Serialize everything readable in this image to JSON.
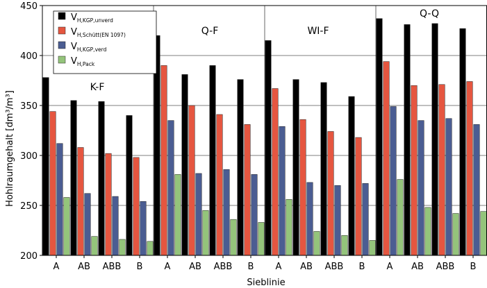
{
  "chart_data": {
    "type": "bar",
    "ylabel": "Hohlraumgehalt [dm³/m³]",
    "xlabel": "Sieblinie",
    "ylim": [
      200,
      450
    ],
    "yticks": [
      200,
      250,
      300,
      350,
      400,
      450
    ],
    "grid": true,
    "legend_position": "top-left",
    "groups": [
      "K-F",
      "Q-F",
      "WI-F",
      "Q-Q"
    ],
    "categories": [
      "A",
      "AB",
      "ABB",
      "B"
    ],
    "series": [
      {
        "name": "V_H,KGP,unverd",
        "label_main": "V",
        "label_sub": "H,KGP,unverd",
        "color": "#000000",
        "values": [
          [
            378,
            355,
            354,
            340
          ],
          [
            420,
            381,
            390,
            376
          ],
          [
            415,
            376,
            373,
            359
          ],
          [
            437,
            431,
            432,
            427
          ]
        ]
      },
      {
        "name": "V_H,Schütt(EN 1097)",
        "label_main": "V",
        "label_sub": "H,Schütt(EN 1097)",
        "color": "#e55640",
        "values": [
          [
            344,
            308,
            302,
            298
          ],
          [
            390,
            350,
            341,
            331
          ],
          [
            367,
            336,
            324,
            318
          ],
          [
            394,
            370,
            371,
            374
          ]
        ]
      },
      {
        "name": "V_H,KGP,verd",
        "label_main": "V",
        "label_sub": "H,KGP,verd",
        "color": "#4b5d92",
        "values": [
          [
            312,
            262,
            259,
            254
          ],
          [
            335,
            282,
            286,
            281
          ],
          [
            329,
            273,
            270,
            272
          ],
          [
            349,
            335,
            337,
            331
          ]
        ]
      },
      {
        "name": "V_H,Pack",
        "label_main": "V",
        "label_sub": "H,Pack",
        "color": "#94c47b",
        "values": [
          [
            258,
            219,
            216,
            214
          ],
          [
            281,
            245,
            236,
            233
          ],
          [
            256,
            224,
            220,
            215
          ],
          [
            276,
            248,
            242,
            244
          ]
        ]
      }
    ]
  }
}
